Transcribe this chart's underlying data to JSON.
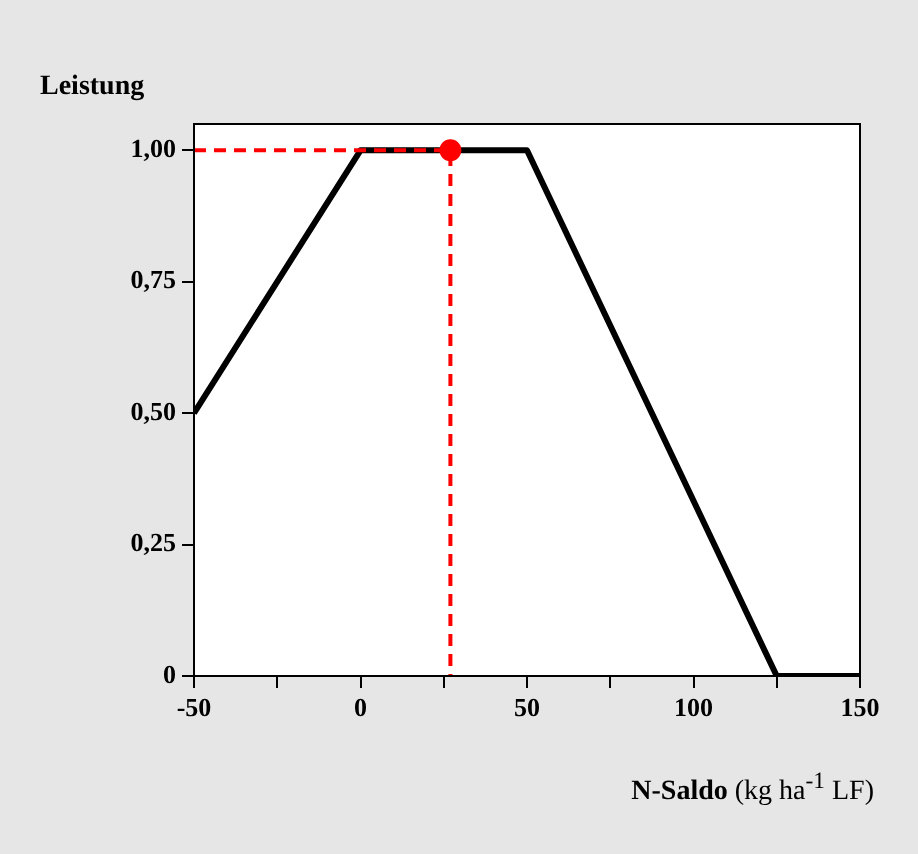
{
  "chart_data": {
    "type": "line",
    "title": "Leistung",
    "xlabel": "N-Saldo (kg ha$^{-1}$ LF)",
    "xlim": [
      -50,
      150
    ],
    "xticks": [
      -50,
      {
        "value": -25,
        "label": null
      },
      0,
      {
        "value": 25,
        "label": null
      },
      50,
      {
        "value": 75,
        "label": null
      },
      100,
      {
        "value": 125,
        "label": null
      },
      150
    ],
    "ylim": [
      0,
      1.05
    ],
    "yticks": [
      {
        "value": 0,
        "label": "0"
      },
      {
        "value": 0.25,
        "label": "0,25"
      },
      {
        "value": 0.5,
        "label": "0,50"
      },
      {
        "value": 0.75,
        "label": "0,75"
      },
      {
        "value": 1,
        "label": "1,00"
      }
    ],
    "grid": false,
    "legend": false,
    "marker": "none",
    "line_style": "solid",
    "series": [
      {
        "color": "#000000",
        "x": [
          -50,
          0,
          50,
          125,
          150
        ],
        "values": [
          0.5,
          1,
          1,
          0,
          0
        ]
      },
      {
        "color": "#ff0000",
        "line_style": "dashed",
        "x": [
          -50,
          27,
          27
        ],
        "values": [
          1,
          1,
          0
        ]
      },
      {
        "type": "scatter",
        "color": "#ff0000",
        "marker": "circle",
        "x": [
          27
        ],
        "values": [
          1
        ]
      }
    ]
  }
}
